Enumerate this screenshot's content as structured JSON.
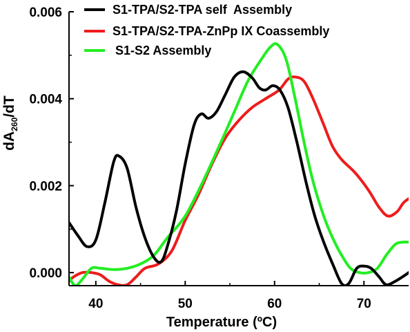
{
  "chart_data": {
    "type": "line",
    "title": "",
    "xlabel": "Temperature (ºC)",
    "ylabel": {
      "main": "dA",
      "sub": "260",
      "tail": "/dT"
    },
    "xlim": [
      37,
      75
    ],
    "ylim": [
      -0.0003,
      0.006
    ],
    "xticks": [
      40,
      50,
      60,
      70
    ],
    "yticks": [
      {
        "value": 0.0,
        "label": "0.000"
      },
      {
        "value": 0.002,
        "label": "0.002"
      },
      {
        "value": 0.004,
        "label": "0.004"
      },
      {
        "value": 0.006,
        "label": "0.006"
      }
    ],
    "grid": false,
    "legend_position": "top-left",
    "series": [
      {
        "name": "S1-TPA/S2-TPA self  Assembly",
        "color": "#000000",
        "points": [
          [
            37,
            0.00115
          ],
          [
            38,
            0.00085
          ],
          [
            39,
            0.0006
          ],
          [
            40,
            0.00075
          ],
          [
            41,
            0.0016
          ],
          [
            42,
            0.00255
          ],
          [
            42.6,
            0.00268
          ],
          [
            43.5,
            0.0024
          ],
          [
            44.5,
            0.0015
          ],
          [
            45.5,
            0.0008
          ],
          [
            46.5,
            0.00035
          ],
          [
            47.3,
            0.00025
          ],
          [
            48,
            0.0006
          ],
          [
            49,
            0.0014
          ],
          [
            50,
            0.0025
          ],
          [
            51,
            0.0034
          ],
          [
            51.8,
            0.00365
          ],
          [
            52.6,
            0.00355
          ],
          [
            53.5,
            0.0037
          ],
          [
            54.5,
            0.0041
          ],
          [
            55.5,
            0.0045
          ],
          [
            56.5,
            0.00462
          ],
          [
            57.5,
            0.00448
          ],
          [
            58.3,
            0.00425
          ],
          [
            59,
            0.0042
          ],
          [
            59.8,
            0.0043
          ],
          [
            60.6,
            0.0042
          ],
          [
            61.5,
            0.0038
          ],
          [
            62.5,
            0.003
          ],
          [
            63.5,
            0.0021
          ],
          [
            64.5,
            0.0013
          ],
          [
            65.5,
            0.0007
          ],
          [
            66.5,
            0.0002
          ],
          [
            67.5,
            -0.00025
          ],
          [
            68.3,
            -0.00025
          ],
          [
            69.2,
            0.0001
          ],
          [
            70,
            0.00015
          ],
          [
            70.8,
            0.0001
          ],
          [
            71.7,
            -0.0001
          ],
          [
            72.5,
            -0.00028
          ],
          [
            73.5,
            -0.0002
          ],
          [
            74.3,
            -0.0001
          ],
          [
            75,
            0.0
          ]
        ]
      },
      {
        "name": "S1-TPA/S2-TPA-ZnPp IX Coassembly",
        "color": "#ee1c1c",
        "points": [
          [
            37,
            -0.0002
          ],
          [
            37.5,
            -0.0001
          ],
          [
            38.5,
            0.0
          ],
          [
            39.5,
            0.0
          ],
          [
            40.5,
            -5e-05
          ],
          [
            41.5,
            -0.0002
          ],
          [
            42.5,
            -0.00028
          ],
          [
            43.5,
            -0.00028
          ],
          [
            44.5,
            -0.0001
          ],
          [
            45.5,
            0.0001
          ],
          [
            47,
            0.0002
          ],
          [
            48.5,
            0.0005
          ],
          [
            50,
            0.0012
          ],
          [
            51.5,
            0.0018
          ],
          [
            53,
            0.0025
          ],
          [
            54.5,
            0.0031
          ],
          [
            56,
            0.0035
          ],
          [
            57.5,
            0.0038
          ],
          [
            59,
            0.004
          ],
          [
            60.5,
            0.0042
          ],
          [
            61.5,
            0.00445
          ],
          [
            62.3,
            0.0045
          ],
          [
            63.3,
            0.0044
          ],
          [
            64.3,
            0.004
          ],
          [
            65.5,
            0.0034
          ],
          [
            66.5,
            0.0029
          ],
          [
            67.5,
            0.0026
          ],
          [
            69,
            0.0023
          ],
          [
            70.5,
            0.0019
          ],
          [
            71.7,
            0.0015
          ],
          [
            72.7,
            0.0013
          ],
          [
            73.7,
            0.0014
          ],
          [
            74.4,
            0.0016
          ],
          [
            75,
            0.0017
          ]
        ]
      },
      {
        "name": "S1-S2 Assembly",
        "color": "#22ee22",
        "points": [
          [
            37,
            -0.0001
          ],
          [
            37.7,
            -0.0003
          ],
          [
            38.5,
            -0.00015
          ],
          [
            39.5,
            0.0001
          ],
          [
            40.5,
            0.0001
          ],
          [
            42,
            7e-05
          ],
          [
            43.5,
            0.0001
          ],
          [
            45,
            0.0002
          ],
          [
            46.5,
            0.0004
          ],
          [
            48,
            0.0008
          ],
          [
            50,
            0.0013
          ],
          [
            52,
            0.0021
          ],
          [
            54,
            0.003
          ],
          [
            55.5,
            0.0037
          ],
          [
            57,
            0.0044
          ],
          [
            58.5,
            0.0049
          ],
          [
            59.5,
            0.00518
          ],
          [
            60.3,
            0.00525
          ],
          [
            61.3,
            0.0049
          ],
          [
            62.3,
            0.004
          ],
          [
            63.3,
            0.003
          ],
          [
            64.3,
            0.0021
          ],
          [
            65.5,
            0.0013
          ],
          [
            66.5,
            0.0008
          ],
          [
            67.5,
            0.0004
          ],
          [
            68.5,
            0.0001
          ],
          [
            69.5,
            0.0
          ],
          [
            70.5,
            0.0
          ],
          [
            71.5,
            0.0001
          ],
          [
            72.5,
            0.0004
          ],
          [
            73.5,
            0.00065
          ],
          [
            74.3,
            0.0007
          ],
          [
            75,
            0.0007
          ]
        ]
      }
    ]
  }
}
